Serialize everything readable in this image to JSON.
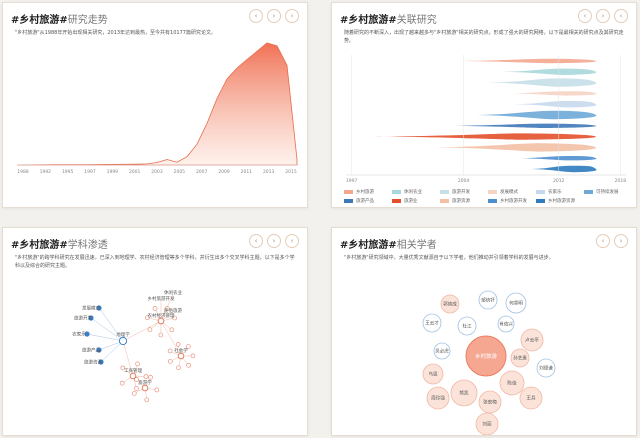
{
  "cards": [
    {
      "title_hash": "#乡村旅游#",
      "title_rest": "研究走势",
      "desc": "\"乡村旅游\"从1988年开始出现相关研究，2013年达到最热，至今共有10177篇研究论文。",
      "buttons": [
        "‹",
        "›",
        "‹"
      ]
    },
    {
      "title_hash": "#乡村旅游#",
      "title_rest": "关联研究",
      "desc": "随着研究的不断深入，出现了越来越多与\"乡村旅游\"相关的研究点，形成了强大的研究网络，以下是最相关的研究点及其研究走势。",
      "buttons": [
        "‹",
        "›",
        "‹"
      ]
    },
    {
      "title_hash": "#乡村旅游#",
      "title_rest": "学科渗透",
      "desc": "\"乡村旅游\"的跨学科研究在发展迅速，已深入到地理学、农村经济管理等多个学科，并衍生出多个交叉学科主题，以下是多个学科以及综合的研究主题。",
      "buttons": [
        "‹",
        "›",
        "‹"
      ]
    },
    {
      "title_hash": "#乡村旅游#",
      "title_rest": "相关学者",
      "desc": "\"乡村旅游\"研究领域中，大量优秀文献源自于以下学者，他们推动并引领着学科的发展与进步。",
      "buttons": [
        "‹",
        "›"
      ]
    }
  ],
  "chart_data": [
    {
      "type": "area",
      "x": [
        1988,
        1992,
        1995,
        1997,
        1999,
        2000,
        2001,
        2002,
        2003,
        2004,
        2005,
        2006,
        2007,
        2008,
        2009,
        2010,
        2011,
        2012,
        2013,
        2014,
        2015,
        2016
      ],
      "values": [
        0,
        2,
        3,
        4,
        5,
        6,
        8,
        18,
        40,
        20,
        60,
        150,
        300,
        480,
        620,
        700,
        760,
        820,
        880,
        860,
        720,
        40
      ],
      "tick_labels": [
        "1988",
        "1992",
        "1995",
        "1997",
        "1999",
        "2001",
        "2003",
        "2005",
        "2007",
        "2009",
        "2011",
        "2013",
        "2015"
      ],
      "color": "#f08a6c"
    },
    {
      "type": "area",
      "x_ticks": [
        "1997",
        "2004",
        "2012",
        "2018"
      ],
      "series": [
        {
          "name": "乡村旅游",
          "color": "#f4a78f"
        },
        {
          "name": "休闲农业",
          "color": "#a9d8dc"
        },
        {
          "name": "旅游开发",
          "color": "#c7dfe8"
        },
        {
          "name": "发展模式",
          "color": "#f6d3c3"
        },
        {
          "name": "农家乐",
          "color": "#c6d9ee"
        },
        {
          "name": "可持续发展",
          "color": "#6ea9d8"
        },
        {
          "name": "旅游产品",
          "color": "#3e78b8"
        },
        {
          "name": "旅游业",
          "color": "#e2502b"
        },
        {
          "name": "旅游资源",
          "color": "#f3c0a4"
        },
        {
          "name": "乡村旅游开发",
          "color": "#4f8fd0"
        },
        {
          "name": "乡村旅游资源",
          "color": "#2e7bbf"
        }
      ]
    }
  ],
  "network": {
    "hubs": [
      "地理学",
      "农村经济管理",
      "工商管理",
      "旅游学",
      "社会学"
    ],
    "left_nodes": [
      "旅游开发",
      "发展模式",
      "农家乐",
      "旅游产品",
      "旅游资源"
    ],
    "right_nodes": [
      "乡村旅游开发",
      "休闲农业",
      "民俗旅游"
    ]
  },
  "scholars": {
    "center": "乡村旅游",
    "names": [
      "郭焕成",
      "邹统钎",
      "何景明",
      "王云才",
      "杜江",
      "肖佑兴",
      "卢云亭",
      "吴必虎",
      "孙艺惠",
      "刘德谦",
      "乌恩",
      "陈佳",
      "熊凯",
      "张宏梅",
      "周玲强",
      "王兵",
      "刘丽"
    ]
  },
  "colors": {
    "accent": "#ef6a4c",
    "blue": "#3a7fc8",
    "border": "#e6ddd2"
  }
}
